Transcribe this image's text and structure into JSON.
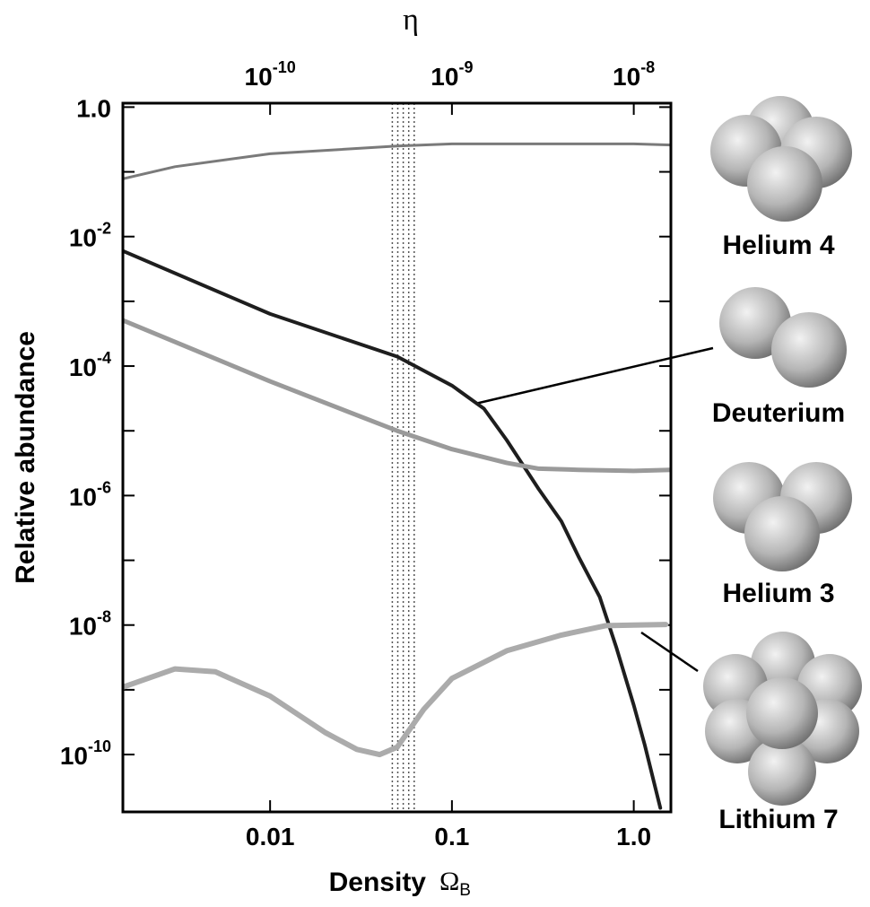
{
  "chart_data": {
    "type": "line",
    "top_axis_label": "η",
    "ylabel": "Relative abundance",
    "xlabel": "Density",
    "xlabel_symbol": "Ω",
    "xlabel_sub": "B",
    "log_x": true,
    "log_y": true,
    "xlim": [
      0.00155,
      1.6
    ],
    "x2lim": [
      1.55e-11,
      1.6e-08
    ],
    "ylim": [
      1.3e-11,
      1.15
    ],
    "xticks": [
      0.01,
      0.1,
      {
        "value": 1,
        "label": "1.0"
      }
    ],
    "x2ticks": [
      {
        "value": 1e-10,
        "label": "10",
        "exponent": "-10"
      },
      {
        "value": 1e-09,
        "label": "10",
        "exponent": "-9"
      },
      {
        "value": 1e-08,
        "label": "10",
        "exponent": "-8"
      }
    ],
    "yticks": [
      {
        "value": 1,
        "label": "1.0"
      },
      {
        "value": 0.01,
        "label": "10",
        "exponent": "-2"
      },
      {
        "value": 0.0001,
        "label": "10",
        "exponent": "-4"
      },
      {
        "value": 1e-06,
        "label": "10",
        "exponent": "-6"
      },
      {
        "value": 1e-08,
        "label": "10",
        "exponent": "-8"
      },
      {
        "value": 1e-10,
        "label": "10",
        "exponent": "-10"
      }
    ],
    "yminorticks": [
      0.1,
      0.001,
      1e-05,
      1e-07,
      1e-09
    ],
    "band": [
      0.047,
      0.062
    ],
    "series": [
      {
        "name": "Helium 4",
        "color": "#7a7a7a",
        "width": 3,
        "x": [
          0.00155,
          0.003,
          0.01,
          0.05,
          0.1,
          0.5,
          1.0,
          1.6
        ],
        "values": [
          0.078,
          0.12,
          0.19,
          0.25,
          0.27,
          0.27,
          0.27,
          0.26
        ]
      },
      {
        "name": "Deuterium",
        "color": "#1e1e1e",
        "width": 4,
        "x": [
          0.00155,
          0.01,
          0.05,
          0.1,
          0.15,
          0.2,
          0.3,
          0.4,
          0.5,
          0.65,
          0.8,
          1.0,
          1.15,
          1.4
        ],
        "values": [
          0.006,
          0.00064,
          0.00014,
          5e-05,
          2.2e-05,
          7.2e-06,
          1.26e-06,
          4e-07,
          1.1e-07,
          2.7e-08,
          4.6e-09,
          5.8e-10,
          1.4e-10,
          1.5e-11
        ]
      },
      {
        "name": "Helium 3",
        "color": "#9a9a9a",
        "width": 5,
        "x": [
          0.00155,
          0.01,
          0.05,
          0.1,
          0.2,
          0.3,
          0.5,
          1.0,
          1.6
        ],
        "values": [
          0.00051,
          5.8e-05,
          1e-05,
          5.2e-06,
          3.2e-06,
          2.6e-06,
          2.5e-06,
          2.4e-06,
          2.5e-06
        ]
      },
      {
        "name": "Lithium 7",
        "color": "#ababab",
        "width": 6,
        "x": [
          0.00155,
          0.003,
          0.005,
          0.01,
          0.02,
          0.03,
          0.04,
          0.05,
          0.07,
          0.1,
          0.2,
          0.4,
          0.7,
          1.0,
          1.5
        ],
        "values": [
          1.1e-09,
          2.1e-09,
          1.9e-09,
          8e-10,
          2.2e-10,
          1.2e-10,
          1e-10,
          1.3e-10,
          5e-10,
          1.5e-09,
          4e-09,
          7e-09,
          9.8e-09,
          1e-08,
          1.02e-08
        ]
      }
    ]
  }
}
